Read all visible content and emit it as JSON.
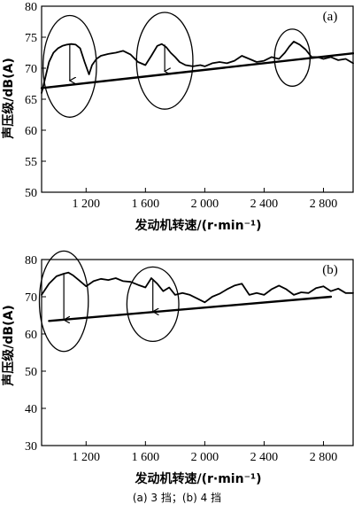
{
  "chart_data": [
    {
      "type": "line",
      "panel_label": "(a)",
      "xlabel": "发动机转速/(r·min⁻¹)",
      "ylabel": "声压级/dB(A)",
      "xlim": [
        900,
        3000
      ],
      "ylim": [
        50,
        80
      ],
      "xticks": [
        1200,
        1600,
        2000,
        2400,
        2800
      ],
      "xtick_labels": [
        "1 200",
        "1 600",
        "2 000",
        "2 400",
        "2 800"
      ],
      "yticks": [
        50,
        55,
        60,
        65,
        70,
        75,
        80
      ],
      "ytick_labels": [
        "50",
        "55",
        "60",
        "65",
        "70",
        "75",
        "80"
      ],
      "grid": false,
      "series": [
        {
          "style": "curve",
          "x": [
            900,
            920,
            950,
            980,
            1010,
            1040,
            1070,
            1100,
            1130,
            1160,
            1190,
            1220,
            1240,
            1270,
            1300,
            1350,
            1400,
            1450,
            1500,
            1550,
            1600,
            1640,
            1680,
            1710,
            1740,
            1770,
            1800,
            1830,
            1870,
            1920,
            1970,
            2000,
            2050,
            2100,
            2150,
            2200,
            2250,
            2300,
            2350,
            2400,
            2450,
            2500,
            2540,
            2570,
            2600,
            2640,
            2680,
            2720,
            2760,
            2800,
            2850,
            2900,
            2950,
            3000
          ],
          "y": [
            66,
            68,
            71,
            72.5,
            73.2,
            73.6,
            73.8,
            73.9,
            73.8,
            73.2,
            71,
            69,
            70.5,
            71.5,
            72,
            72.3,
            72.5,
            72.8,
            72.2,
            71,
            70.5,
            72,
            73.6,
            73.9,
            73.4,
            72.5,
            71.8,
            71,
            70.5,
            70.3,
            70.5,
            70.3,
            70.8,
            71,
            70.8,
            71.2,
            72,
            71.5,
            71,
            71.2,
            71.8,
            71.5,
            72.5,
            73.5,
            74.3,
            73.8,
            73,
            71.8,
            71.8,
            71.5,
            71.8,
            71.3,
            71.5,
            70.8
          ]
        },
        {
          "style": "trend",
          "x": [
            900,
            3000
          ],
          "y": [
            66.8,
            72.4
          ]
        }
      ],
      "annotations": [
        {
          "type": "ellipse",
          "cx": 1090,
          "cy": 70.3,
          "rx": 180,
          "ry": 8.2
        },
        {
          "type": "ellipse",
          "cx": 1730,
          "cy": 71.2,
          "rx": 190,
          "ry": 7.8
        },
        {
          "type": "ellipse",
          "cx": 2590,
          "cy": 71.7,
          "rx": 120,
          "ry": 4.6
        },
        {
          "type": "arrow",
          "x": 1090,
          "y_from": 73.8,
          "y_to": 68
        },
        {
          "type": "arrow",
          "x": 1730,
          "y_from": 73.8,
          "y_to": 69.5
        }
      ]
    },
    {
      "type": "line",
      "panel_label": "(b)",
      "xlabel": "发动机转速/(r·min⁻¹)",
      "ylabel": "声压级/dB(A)",
      "xlim": [
        900,
        3000
      ],
      "ylim": [
        30,
        80
      ],
      "xticks": [
        1200,
        1600,
        2000,
        2400,
        2800
      ],
      "xtick_labels": [
        "1 200",
        "1 600",
        "2 000",
        "2 400",
        "2 800"
      ],
      "yticks": [
        30,
        40,
        50,
        60,
        70,
        80
      ],
      "ytick_labels": [
        "30",
        "40",
        "50",
        "60",
        "70",
        "80"
      ],
      "grid": false,
      "series": [
        {
          "style": "curve",
          "x": [
            900,
            950,
            1000,
            1050,
            1080,
            1110,
            1150,
            1200,
            1250,
            1300,
            1350,
            1400,
            1450,
            1500,
            1550,
            1600,
            1640,
            1680,
            1720,
            1760,
            1800,
            1850,
            1900,
            1950,
            2000,
            2050,
            2100,
            2150,
            2200,
            2250,
            2300,
            2350,
            2400,
            2450,
            2500,
            2550,
            2600,
            2650,
            2700,
            2750,
            2800,
            2850,
            2900,
            2950,
            3000
          ],
          "y": [
            70.5,
            73.5,
            75.5,
            76.2,
            76.5,
            75.8,
            74.5,
            72.8,
            74.2,
            74.8,
            74.5,
            75,
            74.2,
            74,
            73.2,
            72.5,
            75,
            73.5,
            71.5,
            72.5,
            70.5,
            71,
            70.5,
            69.5,
            68.5,
            70,
            70.8,
            72,
            73,
            73.5,
            70.5,
            71,
            70.5,
            72,
            73,
            72,
            70.5,
            71.2,
            71,
            72.3,
            72.8,
            71.5,
            72.2,
            71,
            71
          ]
        },
        {
          "style": "trend",
          "x": [
            950,
            2850
          ],
          "y": [
            63.5,
            70
          ]
        }
      ],
      "annotations": [
        {
          "type": "ellipse",
          "cx": 1050,
          "cy": 68.8,
          "rx": 165,
          "ry": 13.5
        },
        {
          "type": "ellipse",
          "cx": 1650,
          "cy": 68,
          "rx": 175,
          "ry": 10
        },
        {
          "type": "arrow",
          "x": 1050,
          "y_from": 76,
          "y_to": 63.8
        },
        {
          "type": "arrow",
          "x": 1650,
          "y_from": 74.5,
          "y_to": 66
        }
      ]
    }
  ],
  "caption": "(a) 3 挡；(b) 4 挡"
}
